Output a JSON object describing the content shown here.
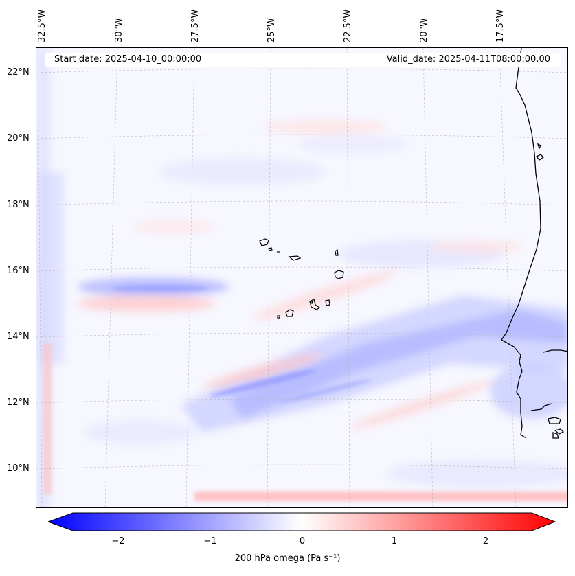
{
  "header": {
    "start_date": "Start date: 2025-04-10_00:00:00",
    "valid_date": "Valid_date: 2025-04-11T08:00:00.00"
  },
  "lon_labels": [
    "32.5°W",
    "30°W",
    "27.5°W",
    "25°W",
    "22.5°W",
    "20°W",
    "17.5°W"
  ],
  "lat_labels": [
    "22°N",
    "20°N",
    "18°N",
    "16°N",
    "14°N",
    "12°N",
    "10°N"
  ],
  "colorbar": {
    "ticks": [
      "−2",
      "−1",
      "0",
      "1",
      "2"
    ],
    "label": "200 hPa omega (Pa s⁻¹)",
    "range": [
      -2.6,
      2.6
    ],
    "colors": {
      "neg": "#0000ff",
      "zero": "#ffffff",
      "pos": "#ff0000"
    }
  }
}
